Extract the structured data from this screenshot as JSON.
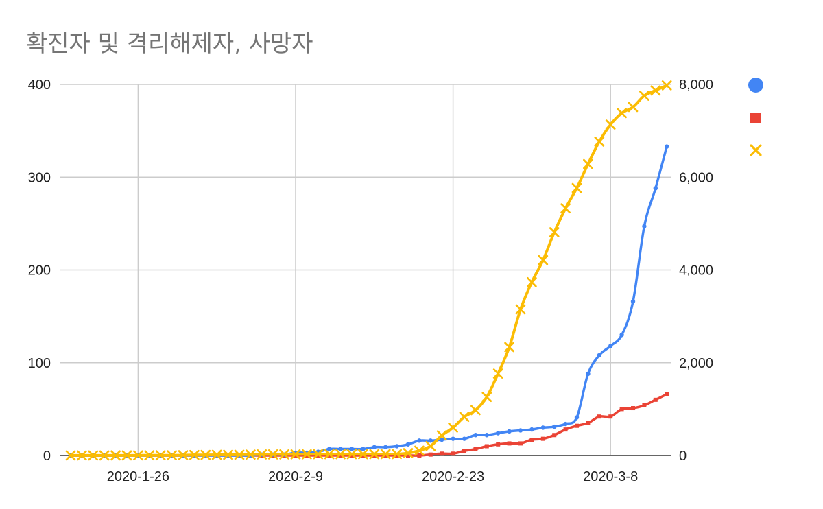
{
  "chart_data": {
    "type": "line",
    "title": "확진자 및 격리해제자, 사망자",
    "x_start": "2020-01-20",
    "x": [
      "2020-1-20",
      "2020-1-21",
      "2020-1-22",
      "2020-1-23",
      "2020-1-24",
      "2020-1-25",
      "2020-1-26",
      "2020-1-27",
      "2020-1-28",
      "2020-1-29",
      "2020-1-30",
      "2020-1-31",
      "2020-2-1",
      "2020-2-2",
      "2020-2-3",
      "2020-2-4",
      "2020-2-5",
      "2020-2-6",
      "2020-2-7",
      "2020-2-8",
      "2020-2-9",
      "2020-2-10",
      "2020-2-11",
      "2020-2-12",
      "2020-2-13",
      "2020-2-14",
      "2020-2-15",
      "2020-2-16",
      "2020-2-17",
      "2020-2-18",
      "2020-2-19",
      "2020-2-20",
      "2020-2-21",
      "2020-2-22",
      "2020-2-23",
      "2020-2-24",
      "2020-2-25",
      "2020-2-26",
      "2020-2-27",
      "2020-2-28",
      "2020-2-29",
      "2020-3-1",
      "2020-3-2",
      "2020-3-3",
      "2020-3-4",
      "2020-3-5",
      "2020-3-6",
      "2020-3-7",
      "2020-3-8",
      "2020-3-9",
      "2020-3-10",
      "2020-3-11",
      "2020-3-12",
      "2020-3-13"
    ],
    "x_ticks": [
      "2020-1-26",
      "2020-2-9",
      "2020-2-23",
      "2020-3-8"
    ],
    "left_axis": {
      "range": [
        0,
        400
      ],
      "ticks": [
        "0",
        "100",
        "200",
        "300",
        "400"
      ]
    },
    "right_axis": {
      "range": [
        0,
        8000
      ],
      "ticks": [
        "0",
        "2,000",
        "4,000",
        "6,000",
        "8,000"
      ]
    },
    "grid": true,
    "legend_position": "right",
    "series": [
      {
        "color": "#4285f4",
        "marker": "circle",
        "axis": "left",
        "values": [
          0,
          0,
          0,
          0,
          0,
          0,
          0,
          0,
          0,
          0,
          0,
          0,
          0,
          0,
          0,
          0,
          0,
          1,
          1,
          1,
          3,
          3,
          4,
          7,
          7,
          7,
          7,
          9,
          9,
          10,
          12,
          16,
          16,
          17,
          18,
          18,
          22,
          22,
          24,
          26,
          27,
          28,
          30,
          31,
          34,
          41,
          88,
          108,
          118,
          130,
          166,
          247,
          288,
          333
        ]
      },
      {
        "color": "#ea4335",
        "marker": "square",
        "axis": "left",
        "values": [
          0,
          0,
          0,
          0,
          0,
          0,
          0,
          0,
          0,
          0,
          0,
          0,
          0,
          0,
          0,
          0,
          0,
          0,
          0,
          0,
          0,
          0,
          0,
          0,
          0,
          0,
          0,
          0,
          0,
          0,
          0,
          0,
          1,
          2,
          2,
          5,
          7,
          10,
          12,
          13,
          13,
          17,
          18,
          22,
          28,
          32,
          35,
          42,
          42,
          50,
          51,
          54,
          60,
          66
        ]
      },
      {
        "color": "#fbbc04",
        "marker": "x",
        "axis": "right",
        "values": [
          1,
          1,
          1,
          1,
          2,
          2,
          3,
          4,
          4,
          4,
          6,
          11,
          12,
          15,
          15,
          16,
          19,
          23,
          24,
          24,
          25,
          27,
          28,
          28,
          28,
          28,
          28,
          29,
          30,
          31,
          51,
          104,
          204,
          433,
          602,
          833,
          977,
          1261,
          1766,
          2337,
          3150,
          3736,
          4212,
          4812,
          5328,
          5766,
          6284,
          6767,
          7134,
          7382,
          7513,
          7755,
          7869,
          7979
        ]
      }
    ]
  }
}
